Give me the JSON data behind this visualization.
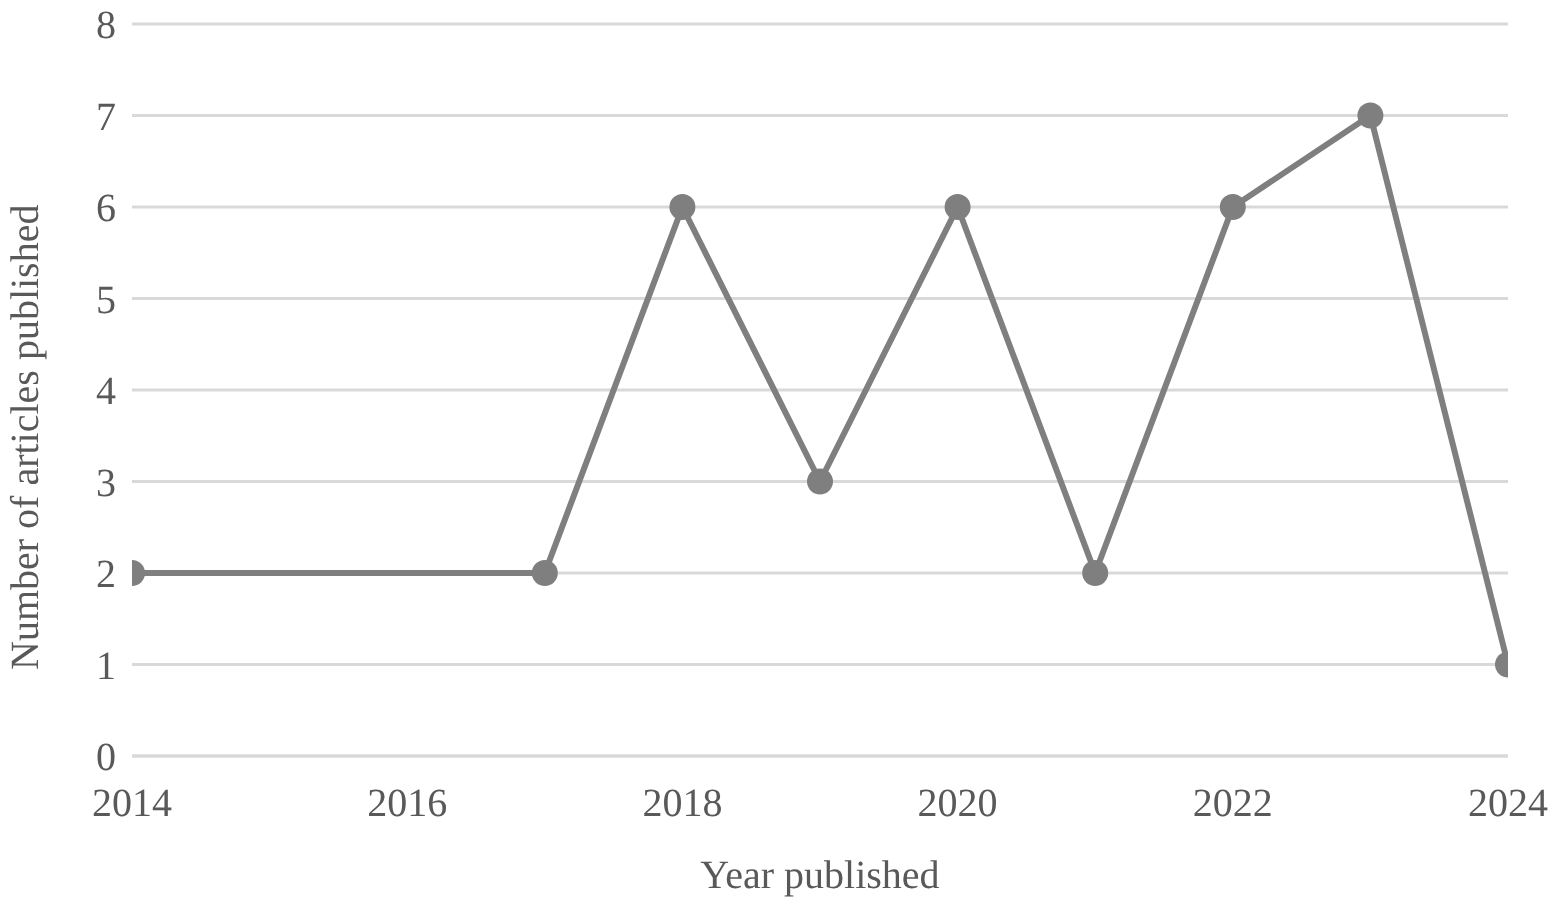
{
  "chart_data": {
    "type": "line",
    "xlabel": "Year published",
    "ylabel": "Number of articles published",
    "x": [
      2014,
      2017,
      2018,
      2019,
      2020,
      2021,
      2022,
      2023,
      2024
    ],
    "values": [
      2,
      2,
      6,
      3,
      6,
      2,
      6,
      7,
      1
    ],
    "color": "#7f7f7f",
    "xlim": [
      2014,
      2024
    ],
    "xticks": [
      2014,
      2016,
      2018,
      2020,
      2022,
      2024
    ],
    "ylim": [
      0,
      8
    ],
    "yticks": [
      0,
      1,
      2,
      3,
      4,
      5,
      6,
      7,
      8
    ],
    "grid": "y",
    "marker": "circle",
    "line_style": "solid"
  }
}
